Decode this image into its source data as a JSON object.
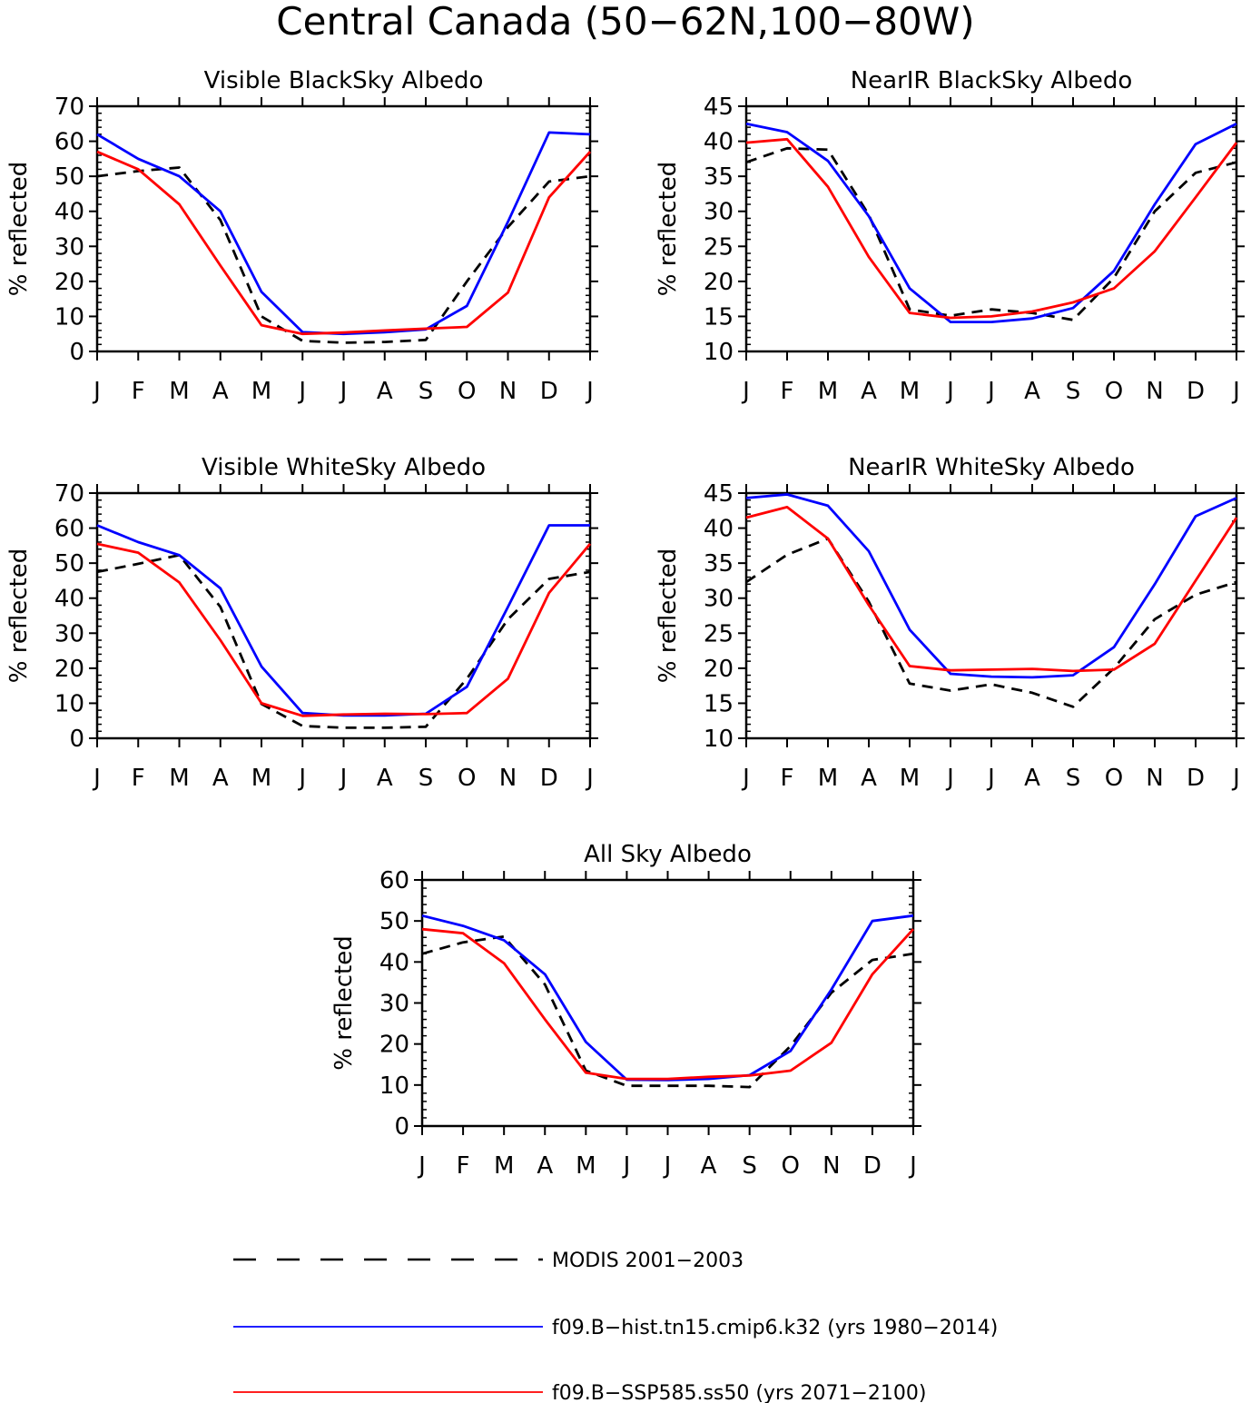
{
  "figure": {
    "title": "Central Canada (50−62N,100−80W)"
  },
  "legend": {
    "placement": "bottom",
    "entries": [
      {
        "label": "MODIS 2001−2003",
        "color": "#000000",
        "style": "dashed"
      },
      {
        "label": "f09.B−hist.tn15.cmip6.k32 (yrs 1980−2014)",
        "color": "#0000ff",
        "style": "solid"
      },
      {
        "label": "f09.B−SSP585.ss50 (yrs 2071−2100)",
        "color": "#ff0000",
        "style": "solid"
      }
    ]
  },
  "chart_data": [
    {
      "type": "line",
      "title": "Visible BlackSky Albedo",
      "ylabel": "% reflected",
      "categories": [
        "J",
        "F",
        "M",
        "A",
        "M",
        "J",
        "J",
        "A",
        "S",
        "O",
        "N",
        "D",
        "J"
      ],
      "ylim": [
        0,
        70
      ],
      "yticks": [
        0,
        10,
        20,
        30,
        40,
        50,
        60,
        70
      ],
      "series": [
        {
          "key": "modis",
          "values": [
            50,
            51.5,
            52.5,
            37.5,
            10,
            3,
            2.5,
            2.7,
            3.3,
            20,
            35.5,
            48.5,
            50
          ]
        },
        {
          "key": "hist",
          "values": [
            62,
            55,
            50,
            40,
            17,
            5.5,
            5,
            5.5,
            6.3,
            13,
            37,
            62.5,
            62
          ]
        },
        {
          "key": "ssp",
          "values": [
            57,
            52,
            42,
            24.5,
            7.5,
            5,
            5.4,
            6,
            6.5,
            7,
            16.8,
            44,
            57
          ]
        }
      ]
    },
    {
      "type": "line",
      "title": "NearIR BlackSky Albedo",
      "ylabel": "% reflected",
      "categories": [
        "J",
        "F",
        "M",
        "A",
        "M",
        "J",
        "J",
        "A",
        "S",
        "O",
        "N",
        "D",
        "J"
      ],
      "ylim": [
        10,
        45
      ],
      "yticks": [
        10,
        15,
        20,
        25,
        30,
        35,
        40,
        45
      ],
      "series": [
        {
          "key": "modis",
          "values": [
            37,
            39,
            38.8,
            29.5,
            16,
            15.1,
            16,
            15.5,
            14.5,
            20.5,
            30,
            35.5,
            37
          ]
        },
        {
          "key": "hist",
          "values": [
            42.5,
            41.3,
            37.2,
            29.3,
            19,
            14.2,
            14.2,
            14.7,
            16.2,
            21.5,
            31,
            39.6,
            42.5
          ]
        },
        {
          "key": "ssp",
          "values": [
            39.8,
            40.3,
            33.5,
            23.5,
            15.5,
            14.8,
            15,
            15.7,
            17,
            19,
            24.3,
            32,
            39.8
          ]
        }
      ]
    },
    {
      "type": "line",
      "title": "Visible WhiteSky Albedo",
      "ylabel": "% reflected",
      "categories": [
        "J",
        "F",
        "M",
        "A",
        "M",
        "J",
        "J",
        "A",
        "S",
        "O",
        "N",
        "D",
        "J"
      ],
      "ylim": [
        0,
        70
      ],
      "yticks": [
        0,
        10,
        20,
        30,
        40,
        50,
        60,
        70
      ],
      "series": [
        {
          "key": "modis",
          "values": [
            47.5,
            49.8,
            52.3,
            37.5,
            9.8,
            3.5,
            3,
            3,
            3.3,
            17,
            34,
            45.5,
            47.5
          ]
        },
        {
          "key": "hist",
          "values": [
            60.8,
            56,
            52.3,
            42.8,
            20.5,
            7.2,
            6.5,
            6.5,
            7,
            14.7,
            37.5,
            60.8,
            60.8
          ]
        },
        {
          "key": "ssp",
          "values": [
            55.5,
            53,
            44.5,
            28,
            10,
            6.4,
            6.8,
            7,
            6.9,
            7.2,
            17,
            41.5,
            55.5
          ]
        }
      ]
    },
    {
      "type": "line",
      "title": "NearIR WhiteSky Albedo",
      "ylabel": "% reflected",
      "categories": [
        "J",
        "F",
        "M",
        "A",
        "M",
        "J",
        "J",
        "A",
        "S",
        "O",
        "N",
        "D",
        "J"
      ],
      "ylim": [
        10,
        45
      ],
      "yticks": [
        10,
        15,
        20,
        25,
        30,
        35,
        40,
        45
      ],
      "series": [
        {
          "key": "modis",
          "values": [
            32.3,
            36.2,
            38.5,
            29.5,
            17.8,
            16.8,
            17.7,
            16.5,
            14.5,
            20,
            27,
            30.5,
            32.3
          ]
        },
        {
          "key": "hist",
          "values": [
            44.3,
            44.8,
            43.2,
            36.7,
            25.5,
            19.2,
            18.8,
            18.7,
            19,
            23,
            32,
            41.7,
            44.3
          ]
        },
        {
          "key": "ssp",
          "values": [
            41.5,
            43,
            38.5,
            29,
            20.3,
            19.7,
            19.8,
            19.9,
            19.6,
            19.8,
            23.5,
            32.5,
            41.5
          ]
        }
      ]
    },
    {
      "type": "line",
      "title": "All Sky Albedo",
      "ylabel": "% reflected",
      "categories": [
        "J",
        "F",
        "M",
        "A",
        "M",
        "J",
        "J",
        "A",
        "S",
        "O",
        "N",
        "D",
        "J"
      ],
      "ylim": [
        0,
        60
      ],
      "yticks": [
        0,
        10,
        20,
        30,
        40,
        50,
        60
      ],
      "series": [
        {
          "key": "modis",
          "values": [
            42,
            44.8,
            46.2,
            34.5,
            13.5,
            9.8,
            9.8,
            9.8,
            9.5,
            19.5,
            32.5,
            40.5,
            42
          ]
        },
        {
          "key": "hist",
          "values": [
            51.3,
            48.8,
            45.3,
            37,
            20.5,
            11.3,
            11.2,
            11.5,
            12.4,
            18.3,
            33.3,
            50,
            51.3
          ]
        },
        {
          "key": "ssp",
          "values": [
            48,
            47,
            39.7,
            26,
            13,
            11.5,
            11.5,
            12,
            12.3,
            13.5,
            20.3,
            37,
            48
          ]
        }
      ]
    }
  ]
}
